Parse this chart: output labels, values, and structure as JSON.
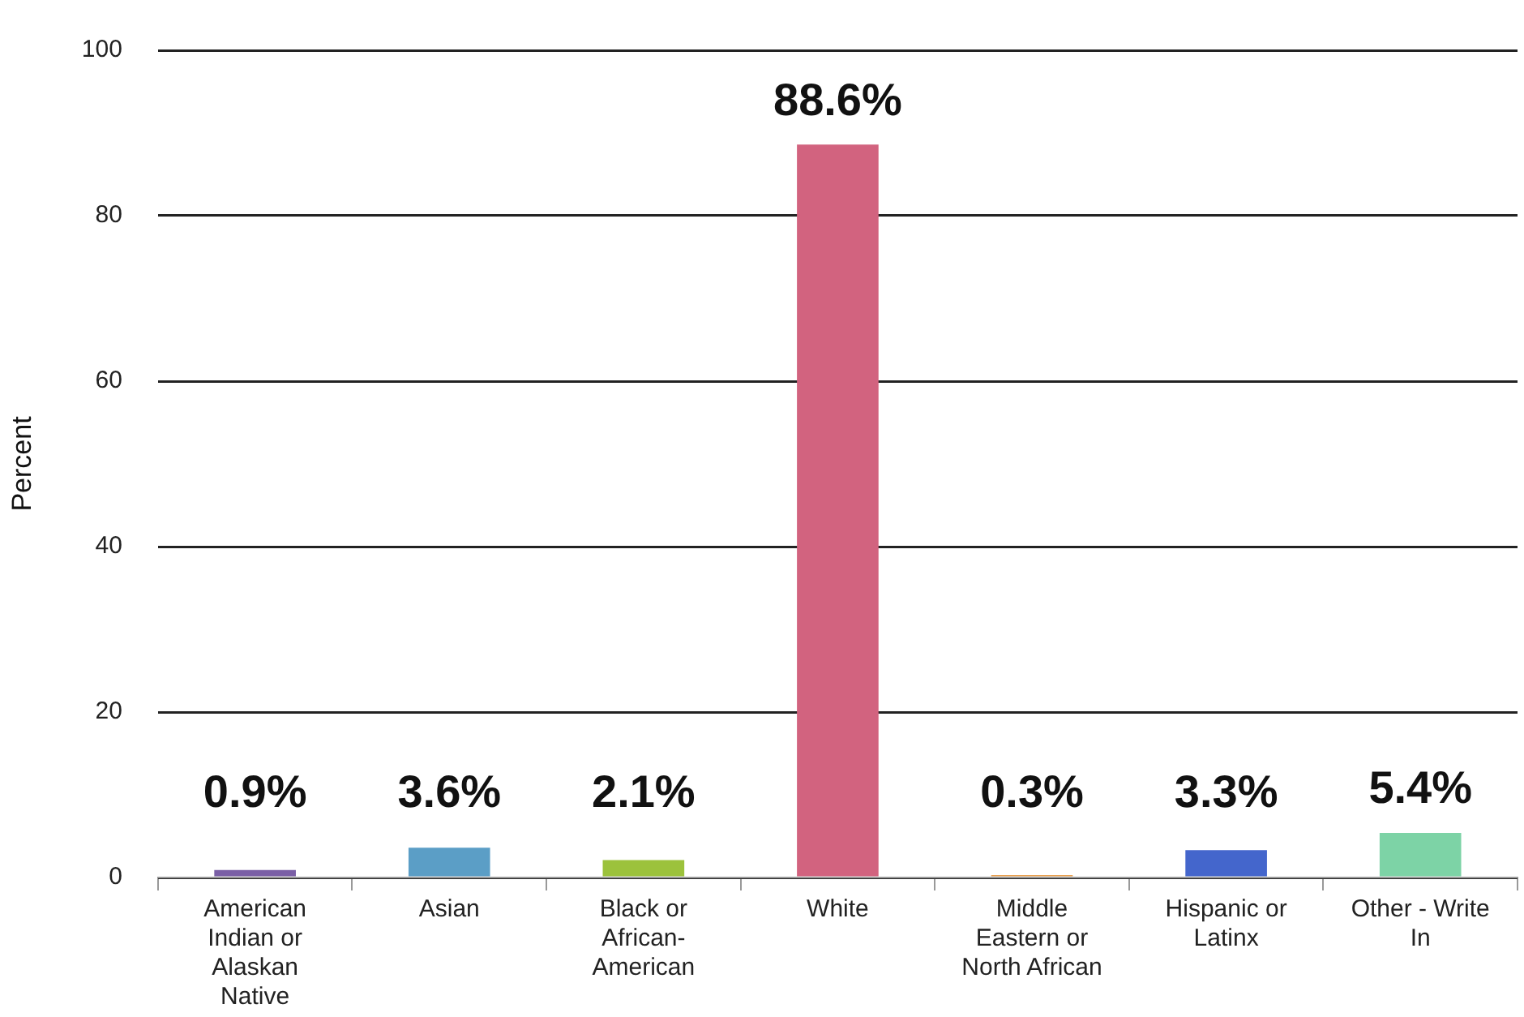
{
  "chart_data": {
    "type": "bar",
    "ylabel": "Percent",
    "categories": [
      "American Indian or Alaskan Native",
      "Asian",
      "Black or African-American",
      "White",
      "Middle Eastern or North African",
      "Hispanic or Latinx",
      "Other - Write In"
    ],
    "values": [
      0.9,
      3.6,
      2.1,
      88.6,
      0.3,
      3.3,
      5.4
    ],
    "colors": [
      "#7a5fa6",
      "#5b9ec6",
      "#9cc23c",
      "#d2637f",
      "#e8a050",
      "#4466cc",
      "#7dd3a6"
    ],
    "value_labels": [
      "0.9%",
      "3.6%",
      "2.1%",
      "88.6%",
      "0.3%",
      "3.3%",
      "5.4%"
    ],
    "ylim": [
      0,
      100
    ],
    "yticks": [
      0,
      20,
      40,
      60,
      80,
      100
    ],
    "grid": "y",
    "legend": false
  }
}
